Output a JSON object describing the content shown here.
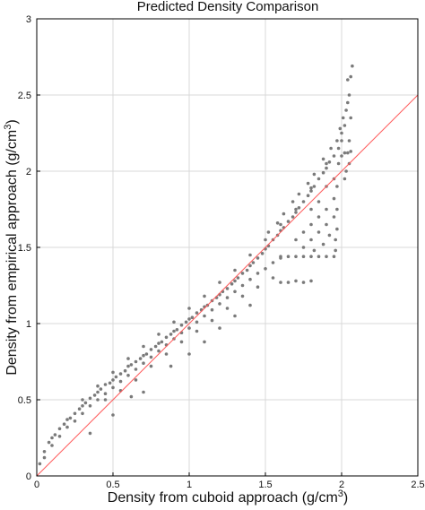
{
  "chart_data": {
    "type": "scatter",
    "title": "Predicted Density Comparison",
    "xlabel": "Density from cuboid approach (g/cm",
    "xlabel_sup": "3",
    "xlabel_tail": ")",
    "ylabel": "Density from empirical approach (g/cm",
    "ylabel_sup": "3",
    "ylabel_tail": ")",
    "xlim": [
      0,
      2.5
    ],
    "ylim": [
      0,
      3
    ],
    "xticks": [
      0,
      0.5,
      1,
      1.5,
      2,
      2.5
    ],
    "yticks": [
      0,
      0.5,
      1,
      1.5,
      2,
      2.5,
      3
    ],
    "xtick_labels": [
      "0",
      "0.5",
      "1",
      "1.5",
      "2",
      "2.5"
    ],
    "ytick_labels": [
      "0",
      "0.5",
      "1",
      "1.5",
      "2",
      "2.5",
      "3"
    ],
    "grid": true,
    "point_color": "#7a7a7a",
    "reference_line": {
      "x": [
        0,
        2.5
      ],
      "y": [
        0,
        2.5
      ],
      "color": "#ff5a5a"
    },
    "series": [
      {
        "values": [
          [
            0.02,
            0.08
          ],
          [
            0.05,
            0.16
          ],
          [
            0.08,
            0.22
          ],
          [
            0.1,
            0.25
          ],
          [
            0.12,
            0.27
          ],
          [
            0.15,
            0.31
          ],
          [
            0.18,
            0.34
          ],
          [
            0.2,
            0.37
          ],
          [
            0.22,
            0.38
          ],
          [
            0.25,
            0.41
          ],
          [
            0.28,
            0.44
          ],
          [
            0.3,
            0.46
          ],
          [
            0.32,
            0.48
          ],
          [
            0.35,
            0.51
          ],
          [
            0.38,
            0.53
          ],
          [
            0.4,
            0.55
          ],
          [
            0.42,
            0.57
          ],
          [
            0.45,
            0.6
          ],
          [
            0.48,
            0.61
          ],
          [
            0.5,
            0.63
          ],
          [
            0.52,
            0.65
          ],
          [
            0.55,
            0.67
          ],
          [
            0.58,
            0.69
          ],
          [
            0.6,
            0.72
          ],
          [
            0.62,
            0.73
          ],
          [
            0.65,
            0.75
          ],
          [
            0.68,
            0.77
          ],
          [
            0.7,
            0.79
          ],
          [
            0.72,
            0.8
          ],
          [
            0.75,
            0.83
          ],
          [
            0.78,
            0.85
          ],
          [
            0.8,
            0.87
          ],
          [
            0.82,
            0.88
          ],
          [
            0.85,
            0.91
          ],
          [
            0.88,
            0.93
          ],
          [
            0.9,
            0.95
          ],
          [
            0.92,
            0.96
          ],
          [
            0.95,
            0.99
          ],
          [
            0.98,
            1.01
          ],
          [
            1.0,
            1.03
          ],
          [
            1.02,
            1.04
          ],
          [
            1.05,
            1.07
          ],
          [
            1.08,
            1.09
          ],
          [
            1.1,
            1.11
          ],
          [
            1.12,
            1.12
          ],
          [
            1.15,
            1.15
          ],
          [
            1.18,
            1.17
          ],
          [
            1.2,
            1.19
          ],
          [
            1.22,
            1.21
          ],
          [
            1.25,
            1.23
          ],
          [
            1.28,
            1.26
          ],
          [
            1.3,
            1.28
          ],
          [
            1.32,
            1.3
          ],
          [
            1.35,
            1.33
          ],
          [
            1.38,
            1.35
          ],
          [
            1.4,
            1.38
          ],
          [
            1.42,
            1.4
          ],
          [
            1.45,
            1.43
          ],
          [
            1.48,
            1.46
          ],
          [
            1.5,
            1.49
          ],
          [
            1.52,
            1.51
          ],
          [
            1.55,
            1.55
          ],
          [
            1.58,
            1.58
          ],
          [
            1.6,
            1.61
          ],
          [
            1.62,
            1.63
          ],
          [
            1.65,
            1.67
          ],
          [
            1.68,
            1.7
          ],
          [
            1.7,
            1.73
          ],
          [
            1.72,
            1.76
          ],
          [
            1.75,
            1.8
          ],
          [
            1.78,
            1.84
          ],
          [
            1.8,
            1.87
          ],
          [
            1.82,
            1.9
          ],
          [
            1.85,
            1.95
          ],
          [
            1.88,
            1.99
          ],
          [
            1.9,
            2.02
          ],
          [
            1.92,
            2.06
          ],
          [
            1.95,
            2.1
          ],
          [
            1.98,
            2.15
          ],
          [
            2.0,
            2.2
          ],
          [
            2.02,
            2.3
          ],
          [
            2.04,
            2.45
          ],
          [
            2.06,
            2.62
          ],
          [
            2.07,
            2.69
          ],
          [
            0.05,
            0.12
          ],
          [
            0.1,
            0.2
          ],
          [
            0.15,
            0.26
          ],
          [
            0.2,
            0.32
          ],
          [
            0.25,
            0.36
          ],
          [
            0.3,
            0.41
          ],
          [
            0.35,
            0.46
          ],
          [
            0.4,
            0.5
          ],
          [
            0.45,
            0.54
          ],
          [
            0.5,
            0.58
          ],
          [
            0.55,
            0.62
          ],
          [
            0.6,
            0.66
          ],
          [
            0.65,
            0.7
          ],
          [
            0.7,
            0.74
          ],
          [
            0.75,
            0.78
          ],
          [
            0.8,
            0.82
          ],
          [
            0.85,
            0.86
          ],
          [
            0.9,
            0.9
          ],
          [
            0.95,
            0.94
          ],
          [
            1.0,
            0.97
          ],
          [
            1.05,
            1.01
          ],
          [
            1.1,
            1.05
          ],
          [
            1.15,
            1.09
          ],
          [
            1.2,
            1.13
          ],
          [
            1.25,
            1.17
          ],
          [
            1.3,
            1.21
          ],
          [
            1.35,
            1.25
          ],
          [
            1.4,
            1.29
          ],
          [
            1.45,
            1.33
          ],
          [
            1.5,
            1.36
          ],
          [
            1.55,
            1.4
          ],
          [
            1.6,
            1.43
          ],
          [
            0.45,
            0.5
          ],
          [
            0.55,
            0.56
          ],
          [
            0.65,
            0.63
          ],
          [
            0.75,
            0.72
          ],
          [
            0.85,
            0.8
          ],
          [
            0.95,
            0.88
          ],
          [
            1.05,
            0.95
          ],
          [
            1.15,
            1.02
          ],
          [
            1.25,
            1.1
          ],
          [
            1.35,
            1.18
          ],
          [
            1.45,
            1.24
          ],
          [
            1.55,
            1.3
          ],
          [
            1.6,
            1.27
          ],
          [
            1.65,
            1.27
          ],
          [
            1.7,
            1.28
          ],
          [
            1.75,
            1.27
          ],
          [
            1.8,
            1.28
          ],
          [
            0.35,
            0.28
          ],
          [
            0.5,
            0.4
          ],
          [
            0.62,
            0.52
          ],
          [
            0.7,
            0.55
          ],
          [
            0.88,
            0.72
          ],
          [
            1.0,
            0.8
          ],
          [
            1.1,
            0.88
          ],
          [
            1.2,
            0.97
          ],
          [
            1.3,
            1.05
          ],
          [
            1.4,
            1.12
          ],
          [
            0.3,
            0.5
          ],
          [
            0.4,
            0.59
          ],
          [
            0.5,
            0.68
          ],
          [
            0.6,
            0.77
          ],
          [
            0.7,
            0.85
          ],
          [
            0.8,
            0.93
          ],
          [
            0.9,
            1.01
          ],
          [
            1.0,
            1.1
          ],
          [
            1.1,
            1.18
          ],
          [
            1.2,
            1.27
          ],
          [
            1.3,
            1.35
          ],
          [
            1.4,
            1.45
          ],
          [
            1.5,
            1.55
          ],
          [
            1.6,
            1.65
          ],
          [
            1.7,
            1.75
          ],
          [
            1.8,
            1.89
          ],
          [
            1.9,
            2.05
          ],
          [
            2.0,
            2.25
          ],
          [
            1.6,
            1.44
          ],
          [
            1.65,
            1.44
          ],
          [
            1.7,
            1.44
          ],
          [
            1.75,
            1.44
          ],
          [
            1.8,
            1.44
          ],
          [
            1.85,
            1.44
          ],
          [
            1.9,
            1.44
          ],
          [
            1.95,
            1.44
          ],
          [
            1.7,
            1.55
          ],
          [
            1.75,
            1.6
          ],
          [
            1.8,
            1.65
          ],
          [
            1.85,
            1.7
          ],
          [
            1.9,
            1.75
          ],
          [
            1.95,
            1.82
          ],
          [
            1.75,
            1.5
          ],
          [
            1.8,
            1.55
          ],
          [
            1.85,
            1.6
          ],
          [
            1.9,
            1.65
          ],
          [
            1.95,
            1.7
          ],
          [
            1.8,
            1.75
          ],
          [
            1.85,
            1.8
          ],
          [
            1.9,
            1.9
          ],
          [
            1.95,
            1.95
          ],
          [
            1.82,
            1.48
          ],
          [
            1.88,
            1.52
          ],
          [
            1.92,
            1.58
          ],
          [
            1.97,
            1.62
          ],
          [
            1.96,
            1.48
          ],
          [
            1.96,
            1.55
          ],
          [
            1.97,
            1.75
          ],
          [
            1.97,
            1.9
          ],
          [
            1.98,
            2.05
          ],
          [
            2.0,
            2.1
          ],
          [
            2.02,
            2.12
          ],
          [
            2.04,
            2.12
          ],
          [
            2.06,
            2.13
          ],
          [
            2.03,
            2.0
          ],
          [
            2.05,
            2.05
          ],
          [
            2.02,
            1.95
          ],
          [
            2.05,
            2.2
          ],
          [
            2.06,
            2.35
          ],
          [
            2.05,
            2.5
          ],
          [
            2.04,
            2.6
          ],
          [
            2.03,
            2.4
          ],
          [
            2.01,
            2.35
          ],
          [
            1.99,
            2.28
          ],
          [
            1.97,
            2.2
          ],
          [
            1.93,
            2.15
          ],
          [
            1.88,
            2.08
          ],
          [
            1.82,
            1.98
          ],
          [
            1.78,
            1.92
          ],
          [
            1.72,
            1.85
          ],
          [
            1.68,
            1.8
          ],
          [
            1.62,
            1.72
          ],
          [
            1.58,
            1.66
          ],
          [
            1.52,
            1.6
          ]
        ]
      }
    ]
  }
}
